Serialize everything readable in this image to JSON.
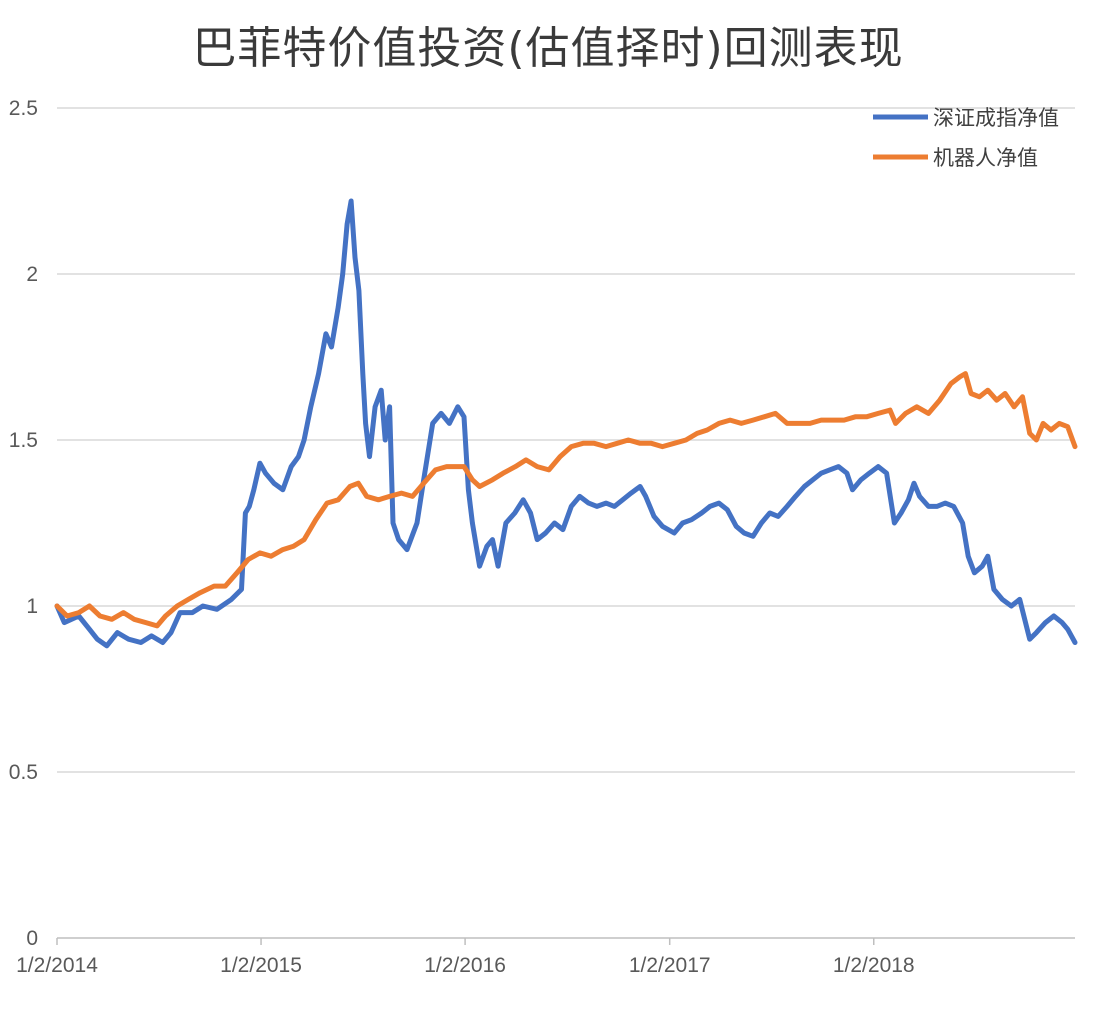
{
  "chart_data": {
    "type": "line",
    "title": "巴菲特价值投资(估值择时)回测表现",
    "xlabel": "",
    "ylabel": "",
    "ylim": [
      0,
      2.5
    ],
    "y_ticks": [
      "0",
      "0.5",
      "1",
      "1.5",
      "2",
      "2.5"
    ],
    "x_ticks": [
      "1/2/2014",
      "1/2/2015",
      "1/2/2016",
      "1/2/2017",
      "1/2/2018"
    ],
    "xlim": [
      "2014-01-02",
      "2018-12-28"
    ],
    "grid": true,
    "legend_position": "top-right",
    "series": [
      {
        "name": "深证成指净值",
        "color": "#4472C4",
        "points": [
          [
            "2014-01-02",
            1.0
          ],
          [
            "2014-01-15",
            0.95
          ],
          [
            "2014-02-10",
            0.97
          ],
          [
            "2014-03-01",
            0.93
          ],
          [
            "2014-03-15",
            0.9
          ],
          [
            "2014-04-01",
            0.88
          ],
          [
            "2014-04-20",
            0.92
          ],
          [
            "2014-05-10",
            0.9
          ],
          [
            "2014-06-01",
            0.89
          ],
          [
            "2014-06-20",
            0.91
          ],
          [
            "2014-07-10",
            0.89
          ],
          [
            "2014-07-25",
            0.92
          ],
          [
            "2014-08-10",
            0.98
          ],
          [
            "2014-09-01",
            0.98
          ],
          [
            "2014-09-20",
            1.0
          ],
          [
            "2014-10-15",
            0.99
          ],
          [
            "2014-11-10",
            1.02
          ],
          [
            "2014-11-28",
            1.05
          ],
          [
            "2014-12-05",
            1.28
          ],
          [
            "2014-12-12",
            1.3
          ],
          [
            "2014-12-20",
            1.35
          ],
          [
            "2014-12-31",
            1.43
          ],
          [
            "2015-01-10",
            1.4
          ],
          [
            "2015-01-25",
            1.37
          ],
          [
            "2015-02-10",
            1.35
          ],
          [
            "2015-02-25",
            1.42
          ],
          [
            "2015-03-10",
            1.45
          ],
          [
            "2015-03-20",
            1.5
          ],
          [
            "2015-04-01",
            1.6
          ],
          [
            "2015-04-15",
            1.7
          ],
          [
            "2015-04-28",
            1.82
          ],
          [
            "2015-05-08",
            1.78
          ],
          [
            "2015-05-20",
            1.9
          ],
          [
            "2015-05-28",
            2.0
          ],
          [
            "2015-06-05",
            2.15
          ],
          [
            "2015-06-12",
            2.22
          ],
          [
            "2015-06-19",
            2.05
          ],
          [
            "2015-06-26",
            1.95
          ],
          [
            "2015-07-03",
            1.7
          ],
          [
            "2015-07-08",
            1.55
          ],
          [
            "2015-07-15",
            1.45
          ],
          [
            "2015-07-25",
            1.6
          ],
          [
            "2015-08-05",
            1.65
          ],
          [
            "2015-08-12",
            1.5
          ],
          [
            "2015-08-20",
            1.6
          ],
          [
            "2015-08-26",
            1.25
          ],
          [
            "2015-09-05",
            1.2
          ],
          [
            "2015-09-20",
            1.17
          ],
          [
            "2015-10-08",
            1.25
          ],
          [
            "2015-10-20",
            1.38
          ],
          [
            "2015-11-05",
            1.55
          ],
          [
            "2015-11-20",
            1.58
          ],
          [
            "2015-12-05",
            1.55
          ],
          [
            "2015-12-20",
            1.6
          ],
          [
            "2015-12-31",
            1.57
          ],
          [
            "2016-01-08",
            1.35
          ],
          [
            "2016-01-15",
            1.25
          ],
          [
            "2016-01-28",
            1.12
          ],
          [
            "2016-02-10",
            1.18
          ],
          [
            "2016-02-20",
            1.2
          ],
          [
            "2016-03-01",
            1.12
          ],
          [
            "2016-03-15",
            1.25
          ],
          [
            "2016-03-31",
            1.28
          ],
          [
            "2016-04-15",
            1.32
          ],
          [
            "2016-04-28",
            1.28
          ],
          [
            "2016-05-10",
            1.2
          ],
          [
            "2016-05-25",
            1.22
          ],
          [
            "2016-06-10",
            1.25
          ],
          [
            "2016-06-25",
            1.23
          ],
          [
            "2016-07-10",
            1.3
          ],
          [
            "2016-07-25",
            1.33
          ],
          [
            "2016-08-10",
            1.31
          ],
          [
            "2016-08-25",
            1.3
          ],
          [
            "2016-09-10",
            1.31
          ],
          [
            "2016-09-25",
            1.3
          ],
          [
            "2016-10-10",
            1.32
          ],
          [
            "2016-10-25",
            1.34
          ],
          [
            "2016-11-10",
            1.36
          ],
          [
            "2016-11-20",
            1.33
          ],
          [
            "2016-12-05",
            1.27
          ],
          [
            "2016-12-20",
            1.24
          ],
          [
            "2017-01-10",
            1.22
          ],
          [
            "2017-01-25",
            1.25
          ],
          [
            "2017-02-10",
            1.26
          ],
          [
            "2017-02-28",
            1.28
          ],
          [
            "2017-03-15",
            1.3
          ],
          [
            "2017-03-31",
            1.31
          ],
          [
            "2017-04-15",
            1.29
          ],
          [
            "2017-05-01",
            1.24
          ],
          [
            "2017-05-15",
            1.22
          ],
          [
            "2017-05-31",
            1.21
          ],
          [
            "2017-06-15",
            1.25
          ],
          [
            "2017-06-30",
            1.28
          ],
          [
            "2017-07-15",
            1.27
          ],
          [
            "2017-07-31",
            1.3
          ],
          [
            "2017-08-15",
            1.33
          ],
          [
            "2017-08-31",
            1.36
          ],
          [
            "2017-09-15",
            1.38
          ],
          [
            "2017-09-30",
            1.4
          ],
          [
            "2017-10-15",
            1.41
          ],
          [
            "2017-10-31",
            1.42
          ],
          [
            "2017-11-15",
            1.4
          ],
          [
            "2017-11-25",
            1.35
          ],
          [
            "2017-12-10",
            1.38
          ],
          [
            "2017-12-25",
            1.4
          ],
          [
            "2018-01-10",
            1.42
          ],
          [
            "2018-01-25",
            1.4
          ],
          [
            "2018-02-08",
            1.25
          ],
          [
            "2018-02-20",
            1.28
          ],
          [
            "2018-03-05",
            1.32
          ],
          [
            "2018-03-15",
            1.37
          ],
          [
            "2018-03-25",
            1.33
          ],
          [
            "2018-04-10",
            1.3
          ],
          [
            "2018-04-25",
            1.3
          ],
          [
            "2018-05-10",
            1.31
          ],
          [
            "2018-05-25",
            1.3
          ],
          [
            "2018-06-10",
            1.25
          ],
          [
            "2018-06-20",
            1.15
          ],
          [
            "2018-07-01",
            1.1
          ],
          [
            "2018-07-15",
            1.12
          ],
          [
            "2018-07-25",
            1.15
          ],
          [
            "2018-08-05",
            1.05
          ],
          [
            "2018-08-20",
            1.02
          ],
          [
            "2018-09-05",
            1.0
          ],
          [
            "2018-09-20",
            1.02
          ],
          [
            "2018-10-08",
            0.9
          ],
          [
            "2018-10-20",
            0.92
          ],
          [
            "2018-11-05",
            0.95
          ],
          [
            "2018-11-20",
            0.97
          ],
          [
            "2018-12-05",
            0.95
          ],
          [
            "2018-12-15",
            0.93
          ],
          [
            "2018-12-28",
            0.89
          ]
        ]
      },
      {
        "name": "机器人净值",
        "color": "#ED7D31",
        "points": [
          [
            "2014-01-02",
            1.0
          ],
          [
            "2014-01-20",
            0.97
          ],
          [
            "2014-02-10",
            0.98
          ],
          [
            "2014-03-01",
            1.0
          ],
          [
            "2014-03-20",
            0.97
          ],
          [
            "2014-04-10",
            0.96
          ],
          [
            "2014-05-01",
            0.98
          ],
          [
            "2014-05-20",
            0.96
          ],
          [
            "2014-06-10",
            0.95
          ],
          [
            "2014-06-30",
            0.94
          ],
          [
            "2014-07-15",
            0.97
          ],
          [
            "2014-08-05",
            1.0
          ],
          [
            "2014-08-25",
            1.02
          ],
          [
            "2014-09-15",
            1.04
          ],
          [
            "2014-10-10",
            1.06
          ],
          [
            "2014-10-30",
            1.06
          ],
          [
            "2014-11-20",
            1.1
          ],
          [
            "2014-12-10",
            1.14
          ],
          [
            "2014-12-31",
            1.16
          ],
          [
            "2015-01-20",
            1.15
          ],
          [
            "2015-02-10",
            1.17
          ],
          [
            "2015-03-01",
            1.18
          ],
          [
            "2015-03-20",
            1.2
          ],
          [
            "2015-04-10",
            1.26
          ],
          [
            "2015-04-30",
            1.31
          ],
          [
            "2015-05-20",
            1.32
          ],
          [
            "2015-06-10",
            1.36
          ],
          [
            "2015-06-25",
            1.37
          ],
          [
            "2015-07-10",
            1.33
          ],
          [
            "2015-07-31",
            1.32
          ],
          [
            "2015-08-20",
            1.33
          ],
          [
            "2015-09-10",
            1.34
          ],
          [
            "2015-09-30",
            1.33
          ],
          [
            "2015-10-20",
            1.37
          ],
          [
            "2015-11-10",
            1.41
          ],
          [
            "2015-11-30",
            1.42
          ],
          [
            "2015-12-20",
            1.42
          ],
          [
            "2015-12-31",
            1.42
          ],
          [
            "2016-01-15",
            1.38
          ],
          [
            "2016-01-28",
            1.36
          ],
          [
            "2016-02-20",
            1.38
          ],
          [
            "2016-03-10",
            1.4
          ],
          [
            "2016-04-01",
            1.42
          ],
          [
            "2016-04-20",
            1.44
          ],
          [
            "2016-05-10",
            1.42
          ],
          [
            "2016-05-31",
            1.41
          ],
          [
            "2016-06-20",
            1.45
          ],
          [
            "2016-07-10",
            1.48
          ],
          [
            "2016-07-31",
            1.49
          ],
          [
            "2016-08-20",
            1.49
          ],
          [
            "2016-09-10",
            1.48
          ],
          [
            "2016-09-30",
            1.49
          ],
          [
            "2016-10-20",
            1.5
          ],
          [
            "2016-11-10",
            1.49
          ],
          [
            "2016-11-30",
            1.49
          ],
          [
            "2016-12-20",
            1.48
          ],
          [
            "2017-01-10",
            1.49
          ],
          [
            "2017-01-31",
            1.5
          ],
          [
            "2017-02-20",
            1.52
          ],
          [
            "2017-03-10",
            1.53
          ],
          [
            "2017-03-31",
            1.55
          ],
          [
            "2017-04-20",
            1.56
          ],
          [
            "2017-05-10",
            1.55
          ],
          [
            "2017-05-31",
            1.56
          ],
          [
            "2017-06-20",
            1.57
          ],
          [
            "2017-07-10",
            1.58
          ],
          [
            "2017-07-31",
            1.55
          ],
          [
            "2017-08-20",
            1.55
          ],
          [
            "2017-09-10",
            1.55
          ],
          [
            "2017-09-30",
            1.56
          ],
          [
            "2017-10-20",
            1.56
          ],
          [
            "2017-11-10",
            1.56
          ],
          [
            "2017-11-30",
            1.57
          ],
          [
            "2017-12-20",
            1.57
          ],
          [
            "2018-01-10",
            1.58
          ],
          [
            "2018-01-31",
            1.59
          ],
          [
            "2018-02-10",
            1.55
          ],
          [
            "2018-02-28",
            1.58
          ],
          [
            "2018-03-20",
            1.6
          ],
          [
            "2018-04-10",
            1.58
          ],
          [
            "2018-04-30",
            1.62
          ],
          [
            "2018-05-20",
            1.67
          ],
          [
            "2018-06-05",
            1.69
          ],
          [
            "2018-06-15",
            1.7
          ],
          [
            "2018-06-25",
            1.64
          ],
          [
            "2018-07-10",
            1.63
          ],
          [
            "2018-07-25",
            1.65
          ],
          [
            "2018-08-10",
            1.62
          ],
          [
            "2018-08-25",
            1.64
          ],
          [
            "2018-09-10",
            1.6
          ],
          [
            "2018-09-25",
            1.63
          ],
          [
            "2018-10-08",
            1.52
          ],
          [
            "2018-10-20",
            1.5
          ],
          [
            "2018-11-01",
            1.55
          ],
          [
            "2018-11-15",
            1.53
          ],
          [
            "2018-11-30",
            1.55
          ],
          [
            "2018-12-15",
            1.54
          ],
          [
            "2018-12-28",
            1.48
          ]
        ]
      }
    ]
  }
}
